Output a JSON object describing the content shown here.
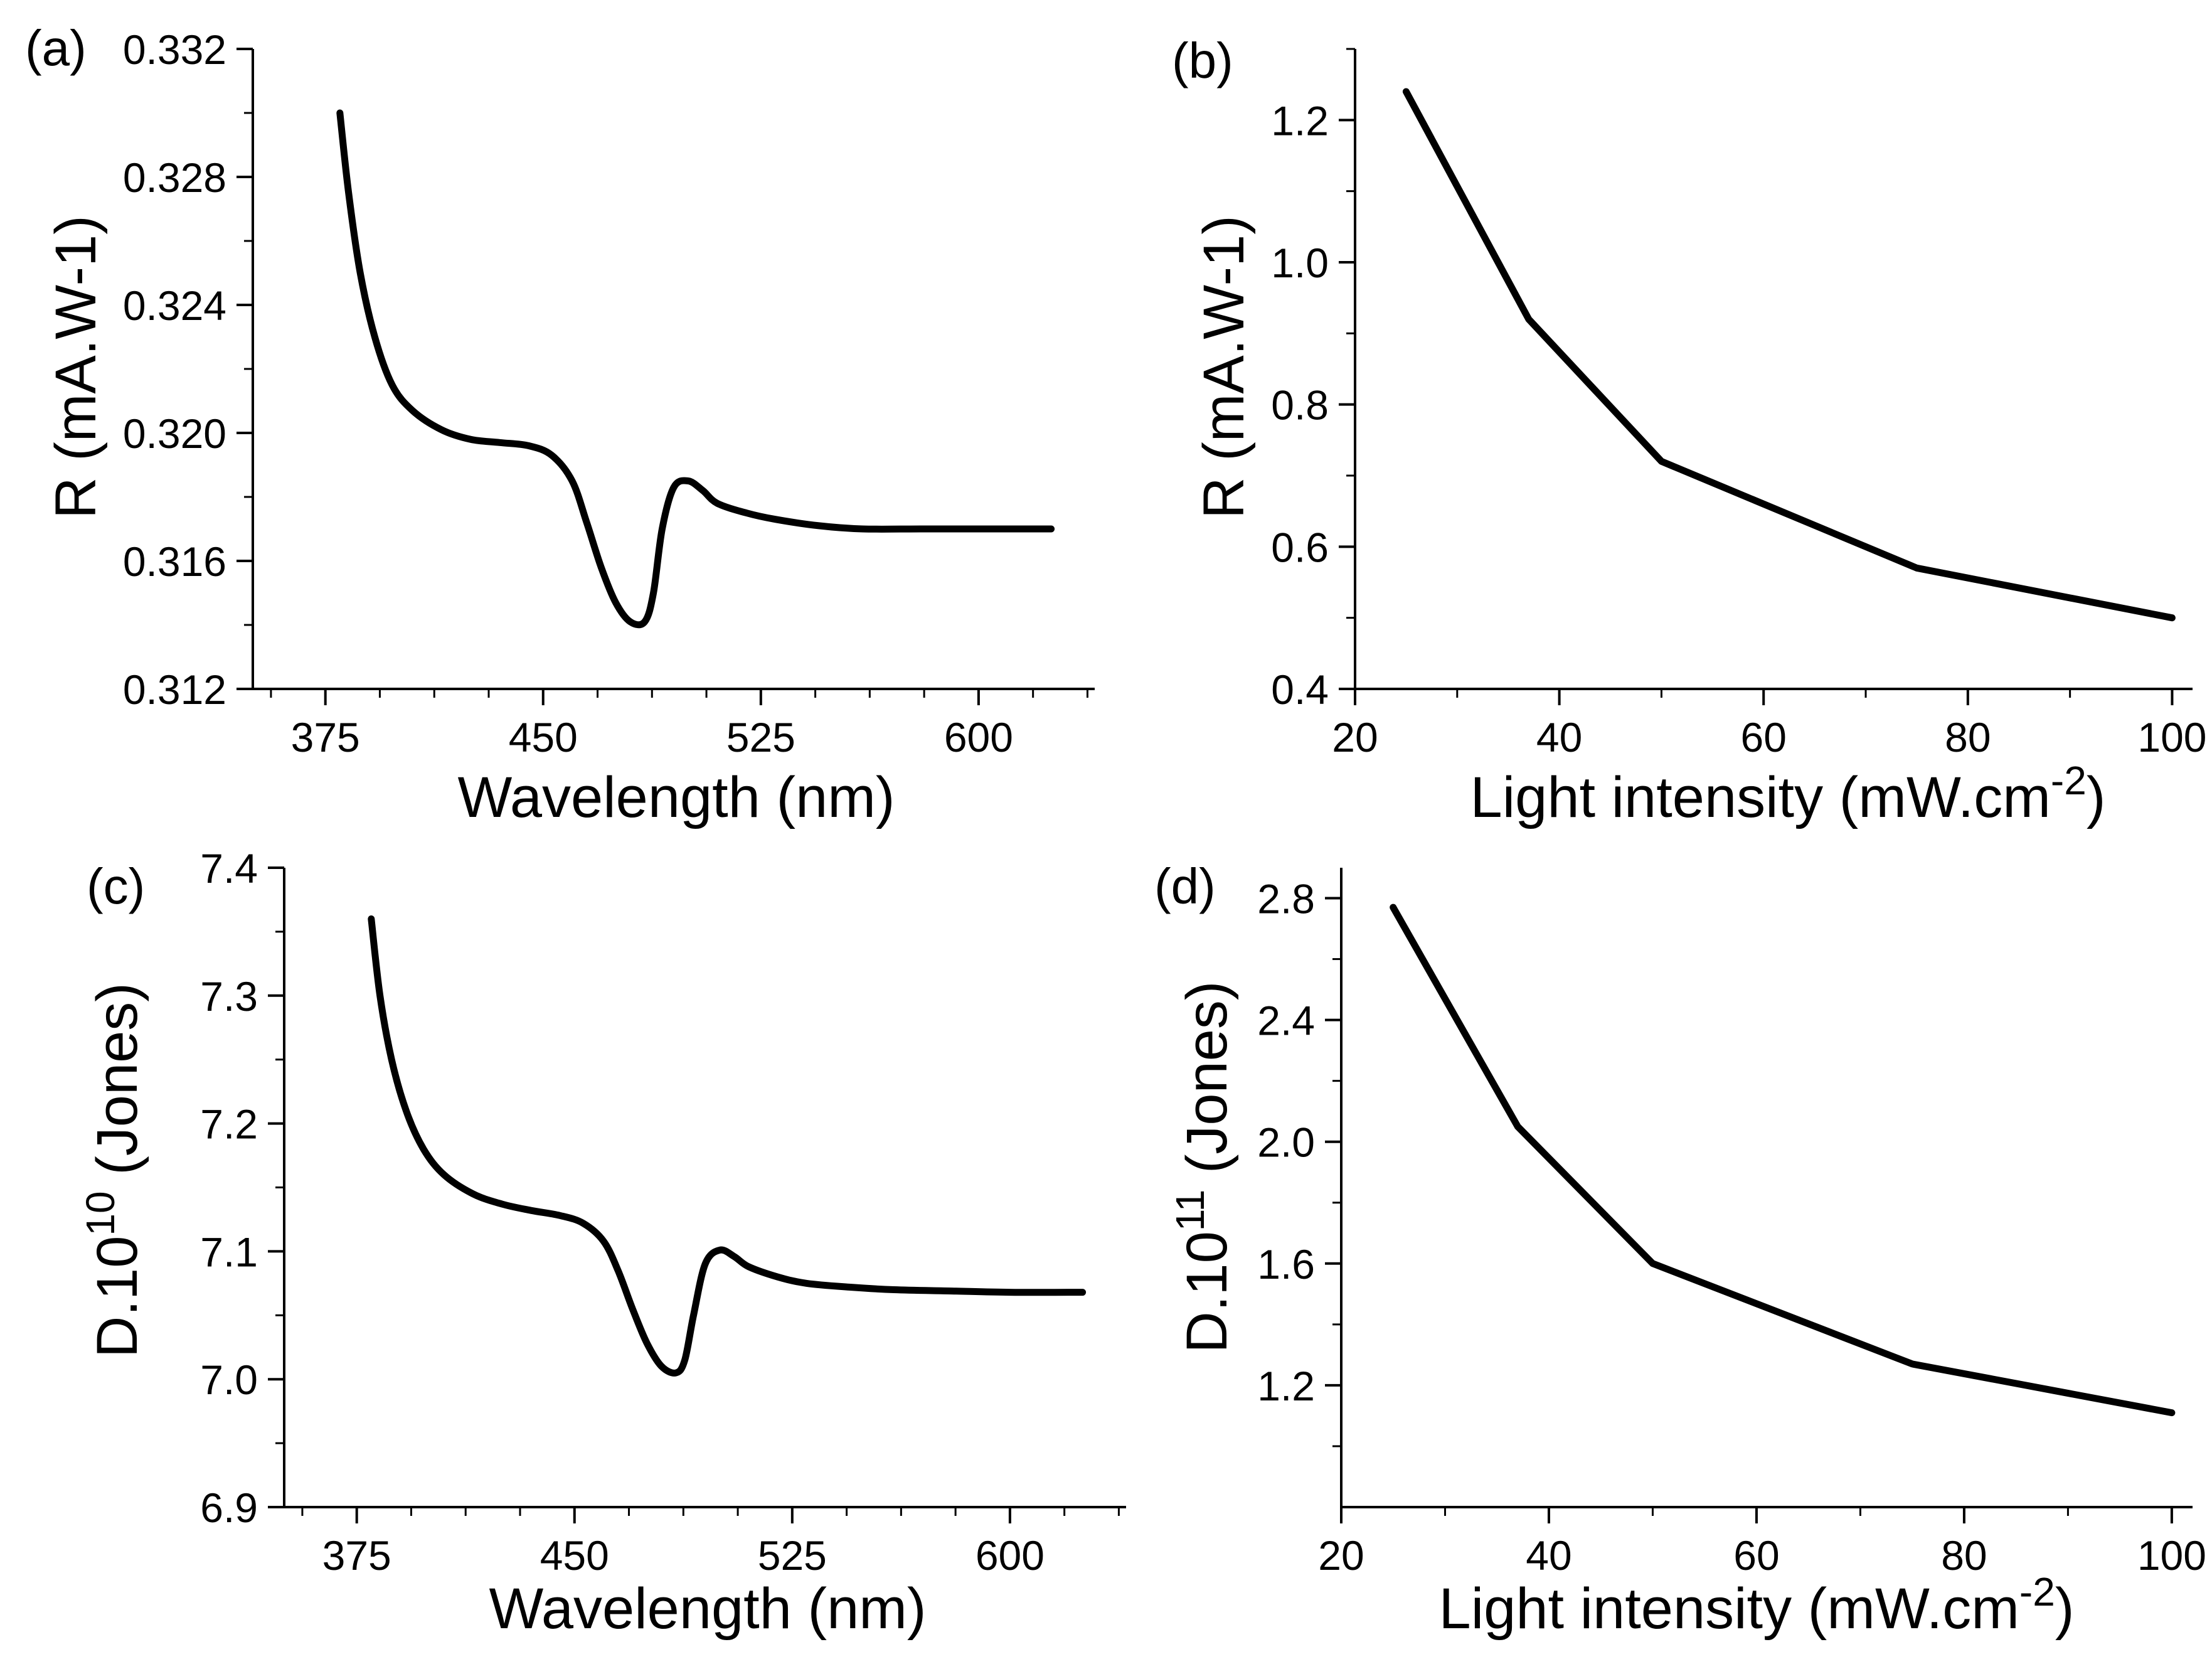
{
  "chart_data": [
    {
      "panel": "(a)",
      "type": "line",
      "xlabel": "Wavelength (nm)",
      "ylabel": "R (mA.W-1)",
      "xlim": [
        350,
        640
      ],
      "ylim": [
        0.312,
        0.332
      ],
      "xticks": [
        375,
        450,
        525,
        600
      ],
      "xtick_labels": [
        "375",
        "450",
        "525",
        "600"
      ],
      "yticks": [
        0.312,
        0.316,
        0.32,
        0.324,
        0.328,
        0.332
      ],
      "ytick_labels": [
        "0.312",
        "0.316",
        "0.320",
        "0.324",
        "0.328",
        "0.332"
      ],
      "series": [
        {
          "name": "R",
          "x": [
            380,
            383,
            387,
            392,
            398,
            405,
            415,
            425,
            435,
            445,
            453,
            460,
            465,
            470,
            475,
            480,
            485,
            488,
            491,
            495,
            500,
            505,
            510,
            520,
            530,
            545,
            560,
            580,
            600,
            625
          ],
          "y": [
            0.33,
            0.3275,
            0.325,
            0.323,
            0.3215,
            0.3207,
            0.3201,
            0.3198,
            0.3197,
            0.3196,
            0.3193,
            0.3185,
            0.3172,
            0.3158,
            0.3147,
            0.3141,
            0.3141,
            0.315,
            0.317,
            0.3183,
            0.3185,
            0.3182,
            0.3178,
            0.3175,
            0.3173,
            0.3171,
            0.317,
            0.317,
            0.317,
            0.317
          ]
        }
      ]
    },
    {
      "panel": "(b)",
      "type": "line",
      "xlabel": "Light intensity (mW.cm",
      "xlabel_sup": "-2",
      "xlabel_end": ")",
      "ylabel": "R (mA.W-1)",
      "xlim": [
        20,
        102
      ],
      "ylim": [
        0.4,
        1.3
      ],
      "xticks": [
        20,
        40,
        60,
        80,
        100
      ],
      "xtick_labels": [
        "20",
        "40",
        "60",
        "80",
        "100"
      ],
      "yticks": [
        0.4,
        0.6,
        0.8,
        1.0,
        1.2
      ],
      "ytick_labels": [
        "0.4",
        "0.6",
        "0.8",
        "1.0",
        "1.2"
      ],
      "series": [
        {
          "name": "R",
          "x": [
            25,
            37,
            50,
            75,
            100
          ],
          "y": [
            1.24,
            0.92,
            0.72,
            0.57,
            0.5
          ]
        }
      ]
    },
    {
      "panel": "(c)",
      "type": "line",
      "xlabel": "Wavelength (nm)",
      "ylabel": "D.10",
      "ylabel_sup": "10",
      "ylabel_end": " (Jones)",
      "xlim": [
        350,
        640
      ],
      "ylim": [
        6.9,
        7.4
      ],
      "xticks": [
        375,
        450,
        525,
        600
      ],
      "xtick_labels": [
        "375",
        "450",
        "525",
        "600"
      ],
      "yticks": [
        6.9,
        7.0,
        7.1,
        7.2,
        7.3,
        7.4
      ],
      "ytick_labels": [
        "6.9",
        "7.0",
        "7.1",
        "7.2",
        "7.3",
        "7.4"
      ],
      "series": [
        {
          "name": "D",
          "x": [
            380,
            383,
            387,
            392,
            398,
            405,
            415,
            425,
            435,
            445,
            453,
            460,
            465,
            470,
            475,
            480,
            485,
            488,
            491,
            495,
            500,
            505,
            510,
            520,
            530,
            545,
            560,
            580,
            600,
            625
          ],
          "y": [
            7.36,
            7.3,
            7.25,
            7.21,
            7.18,
            7.16,
            7.145,
            7.137,
            7.132,
            7.128,
            7.122,
            7.108,
            7.085,
            7.055,
            7.028,
            7.01,
            7.005,
            7.015,
            7.05,
            7.09,
            7.101,
            7.096,
            7.088,
            7.08,
            7.075,
            7.072,
            7.07,
            7.069,
            7.068,
            7.068
          ]
        }
      ]
    },
    {
      "panel": "(d)",
      "type": "line",
      "xlabel": "Light intensity (mW.cm",
      "xlabel_sup": "-2",
      "xlabel_end": ")",
      "ylabel": "D.10",
      "ylabel_sup": "11",
      "ylabel_end": " (Jones)",
      "xlim": [
        20,
        102
      ],
      "ylim": [
        0.8,
        2.9
      ],
      "xticks": [
        20,
        40,
        60,
        80,
        100
      ],
      "xtick_labels": [
        "20",
        "40",
        "60",
        "80",
        "100"
      ],
      "yticks": [
        1.2,
        1.6,
        2.0,
        2.4,
        2.8
      ],
      "ytick_labels": [
        "1.2",
        "1.6",
        "2.0",
        "2.4",
        "2.8"
      ],
      "series": [
        {
          "name": "D",
          "x": [
            25,
            37,
            50,
            75,
            100
          ],
          "y": [
            2.77,
            2.05,
            1.6,
            1.27,
            1.11
          ]
        }
      ]
    }
  ]
}
